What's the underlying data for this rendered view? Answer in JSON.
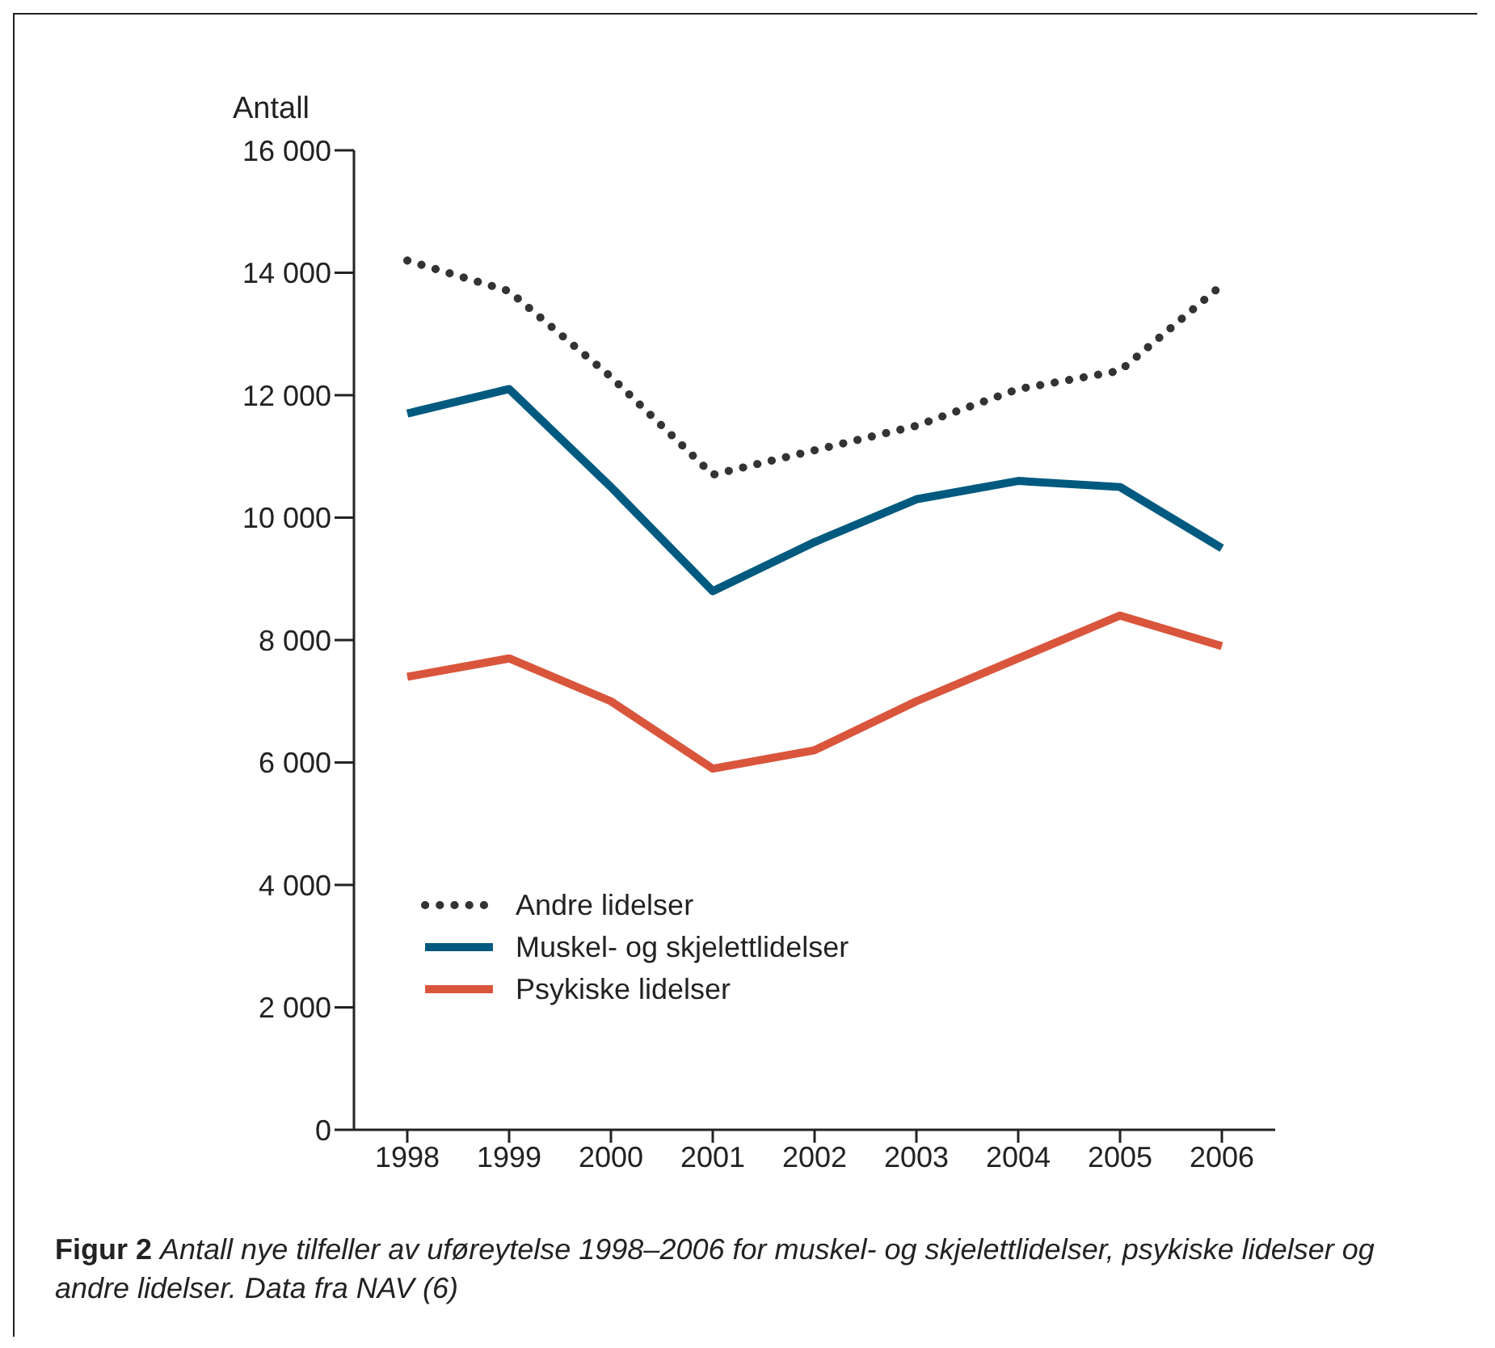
{
  "chart_data": {
    "type": "line",
    "title": "Figur 2",
    "subtitle": "Antall nye tilfeller av uføreytelse 1998–2006 for muskel- og skjelettlidelser, psykiske lidelser og andre lidelser. Data fra NAV (6)",
    "ylabel": "Antall",
    "categories": [
      "1998",
      "1999",
      "2000",
      "2001",
      "2002",
      "2003",
      "2004",
      "2005",
      "2006"
    ],
    "series": [
      {
        "name": "Andre lidelser",
        "color": "#333333",
        "line_style": "dotted",
        "values": [
          14200,
          13700,
          12300,
          10700,
          11100,
          11500,
          12100,
          12400,
          13800
        ]
      },
      {
        "name": "Muskel- og skjelettlidelser",
        "color": "#005a7f",
        "line_style": "solid",
        "values": [
          11700,
          12100,
          10500,
          8800,
          9600,
          10300,
          10600,
          10500,
          9500
        ]
      },
      {
        "name": "Psykiske lidelser",
        "color": "#d9553c",
        "line_style": "solid",
        "values": [
          7400,
          7700,
          7000,
          5900,
          6200,
          7000,
          7700,
          8400,
          7900
        ]
      }
    ],
    "ylim": [
      0,
      16000
    ],
    "yticks": [
      {
        "value": 0,
        "label": "0"
      },
      {
        "value": 2000,
        "label": "2 000"
      },
      {
        "value": 4000,
        "label": "4 000"
      },
      {
        "value": 6000,
        "label": "6 000"
      },
      {
        "value": 8000,
        "label": "8 000"
      },
      {
        "value": 10000,
        "label": "10 000"
      },
      {
        "value": 12000,
        "label": "12 000"
      },
      {
        "value": 14000,
        "label": "14 000"
      },
      {
        "value": 16000,
        "label": "16 000"
      }
    ],
    "grid": false,
    "legend": "bottom left",
    "marker": "none"
  }
}
